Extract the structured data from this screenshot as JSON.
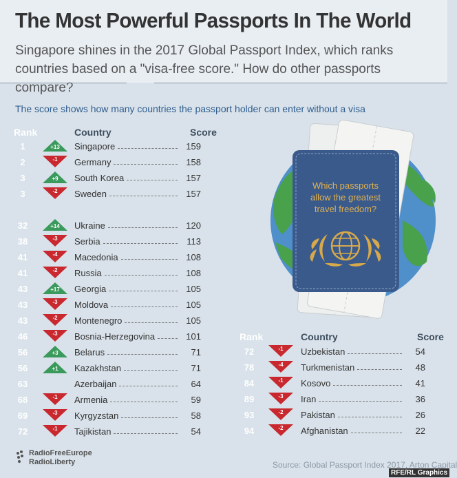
{
  "title": "The Most Powerful Passports In The World",
  "subtitle": "Singapore shines in the 2017 Global Passport Index, which ranks countries based on a \"visa-free score.\" How do other passports compare?",
  "intro": "The score shows how many countries the passport holder can enter without a visa",
  "headers": {
    "rank": "Rank",
    "country": "Country",
    "score": "Score"
  },
  "passport_text": [
    "Which passports",
    "allow the greatest",
    "travel freedom?"
  ],
  "colors": {
    "up": "#3a9a5b",
    "down": "#c8282e",
    "passport": "#3a5a8c",
    "gold": "#d8a94a",
    "ocean": "#4f8fca",
    "land": "#4aa14c"
  },
  "left_rows": [
    {
      "rank": "1",
      "change": "+13",
      "dir": "up",
      "country": "Singapore",
      "score": "159"
    },
    {
      "rank": "2",
      "change": "-1",
      "dir": "down",
      "country": "Germany",
      "score": "158"
    },
    {
      "rank": "3",
      "change": "+9",
      "dir": "up",
      "country": "South Korea",
      "score": "157"
    },
    {
      "rank": "3",
      "change": "-2",
      "dir": "down",
      "country": "Sweden",
      "score": "157"
    },
    {
      "rank": "32",
      "change": "+14",
      "dir": "up",
      "country": "Ukraine",
      "score": "120"
    },
    {
      "rank": "38",
      "change": "-3",
      "dir": "down",
      "country": "Serbia",
      "score": "113"
    },
    {
      "rank": "41",
      "change": "-4",
      "dir": "down",
      "country": "Macedonia",
      "score": "108"
    },
    {
      "rank": "41",
      "change": "-2",
      "dir": "down",
      "country": "Russia",
      "score": "108"
    },
    {
      "rank": "43",
      "change": "+17",
      "dir": "up",
      "country": "Georgia",
      "score": "105"
    },
    {
      "rank": "43",
      "change": "-3",
      "dir": "down",
      "country": "Moldova",
      "score": "105"
    },
    {
      "rank": "43",
      "change": "-2",
      "dir": "down",
      "country": "Montenegro",
      "score": "105"
    },
    {
      "rank": "46",
      "change": "-3",
      "dir": "down",
      "country": "Bosnia-Herzegovina",
      "score": "101"
    },
    {
      "rank": "56",
      "change": "+3",
      "dir": "up",
      "country": "Belarus",
      "score": "71"
    },
    {
      "rank": "56",
      "change": "+1",
      "dir": "up",
      "country": "Kazakhstan",
      "score": "71"
    },
    {
      "rank": "63",
      "change": "",
      "dir": "none",
      "country": "Azerbaijan",
      "score": "64"
    },
    {
      "rank": "68",
      "change": "-1",
      "dir": "down",
      "country": "Armenia",
      "score": "59"
    },
    {
      "rank": "69",
      "change": "-3",
      "dir": "down",
      "country": "Kyrgyzstan",
      "score": "58"
    },
    {
      "rank": "72",
      "change": "-1",
      "dir": "down",
      "country": "Tajikistan",
      "score": "54"
    }
  ],
  "right_rows": [
    {
      "rank": "72",
      "change": "-1",
      "dir": "down",
      "country": "Uzbekistan",
      "score": "54"
    },
    {
      "rank": "78",
      "change": "-4",
      "dir": "down",
      "country": "Turkmenistan",
      "score": "48"
    },
    {
      "rank": "84",
      "change": "-1",
      "dir": "down",
      "country": "Kosovo",
      "score": "41"
    },
    {
      "rank": "89",
      "change": "-3",
      "dir": "down",
      "country": "Iran",
      "score": "36"
    },
    {
      "rank": "93",
      "change": "-2",
      "dir": "down",
      "country": "Pakistan",
      "score": "26"
    },
    {
      "rank": "94",
      "change": "-2",
      "dir": "down",
      "country": "Afghanistan",
      "score": "22"
    }
  ],
  "logo": [
    "RadioFreeEurope",
    "RadioLiberty"
  ],
  "source": "Source: Global Passport Index 2017, Arton Capital",
  "credit": "RFE/RL Graphics"
}
